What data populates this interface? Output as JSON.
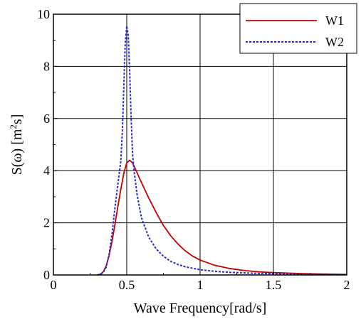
{
  "chart_data": {
    "type": "line",
    "xlabel": "Wave Frequency[rad/s]",
    "ylabel_main": "S(ω) [m",
    "ylabel_sup": "2",
    "ylabel_end": "s]",
    "xlim": [
      0,
      2
    ],
    "ylim": [
      0,
      10
    ],
    "xticks": [
      0,
      0.5,
      1,
      1.5,
      2
    ],
    "xtick_labels": [
      "0",
      "0.5",
      "1",
      "1.5",
      "2"
    ],
    "yticks": [
      0,
      2,
      4,
      6,
      8,
      10
    ],
    "ytick_labels": [
      "0",
      "2",
      "4",
      "6",
      "8",
      "10"
    ],
    "grid": true,
    "legend_position": "top-right",
    "series": [
      {
        "name": "W1",
        "color": "#c00000",
        "style": "solid",
        "points": [
          [
            0.3,
            0.0
          ],
          [
            0.32,
            0.03
          ],
          [
            0.34,
            0.12
          ],
          [
            0.36,
            0.35
          ],
          [
            0.38,
            0.75
          ],
          [
            0.4,
            1.3
          ],
          [
            0.42,
            1.95
          ],
          [
            0.44,
            2.65
          ],
          [
            0.46,
            3.3
          ],
          [
            0.48,
            3.9
          ],
          [
            0.5,
            4.3
          ],
          [
            0.52,
            4.4
          ],
          [
            0.54,
            4.3
          ],
          [
            0.56,
            4.05
          ],
          [
            0.6,
            3.55
          ],
          [
            0.65,
            2.95
          ],
          [
            0.7,
            2.4
          ],
          [
            0.75,
            1.9
          ],
          [
            0.8,
            1.5
          ],
          [
            0.85,
            1.18
          ],
          [
            0.9,
            0.92
          ],
          [
            0.95,
            0.72
          ],
          [
            1.0,
            0.57
          ],
          [
            1.1,
            0.37
          ],
          [
            1.2,
            0.25
          ],
          [
            1.3,
            0.17
          ],
          [
            1.4,
            0.12
          ],
          [
            1.5,
            0.09
          ],
          [
            1.6,
            0.07
          ],
          [
            1.7,
            0.05
          ],
          [
            1.8,
            0.04
          ],
          [
            1.9,
            0.03
          ],
          [
            2.0,
            0.02
          ]
        ]
      },
      {
        "name": "W2",
        "color": "#2a2ad4",
        "style": "dotted",
        "points": [
          [
            0.3,
            0.0
          ],
          [
            0.32,
            0.02
          ],
          [
            0.34,
            0.1
          ],
          [
            0.36,
            0.3
          ],
          [
            0.38,
            0.8
          ],
          [
            0.4,
            1.6
          ],
          [
            0.42,
            2.6
          ],
          [
            0.44,
            3.5
          ],
          [
            0.46,
            4.4
          ],
          [
            0.47,
            5.5
          ],
          [
            0.48,
            7.2
          ],
          [
            0.49,
            8.9
          ],
          [
            0.5,
            9.55
          ],
          [
            0.51,
            9.2
          ],
          [
            0.52,
            7.8
          ],
          [
            0.53,
            6.0
          ],
          [
            0.54,
            4.6
          ],
          [
            0.55,
            4.0
          ],
          [
            0.57,
            3.1
          ],
          [
            0.6,
            2.2
          ],
          [
            0.65,
            1.45
          ],
          [
            0.7,
            1.0
          ],
          [
            0.75,
            0.72
          ],
          [
            0.8,
            0.52
          ],
          [
            0.85,
            0.4
          ],
          [
            0.9,
            0.31
          ],
          [
            1.0,
            0.2
          ],
          [
            1.1,
            0.14
          ],
          [
            1.2,
            0.1
          ],
          [
            1.3,
            0.08
          ],
          [
            1.4,
            0.06
          ],
          [
            1.5,
            0.05
          ],
          [
            1.6,
            0.04
          ],
          [
            1.7,
            0.03
          ],
          [
            1.8,
            0.02
          ],
          [
            1.9,
            0.02
          ],
          [
            2.0,
            0.01
          ]
        ]
      }
    ]
  }
}
